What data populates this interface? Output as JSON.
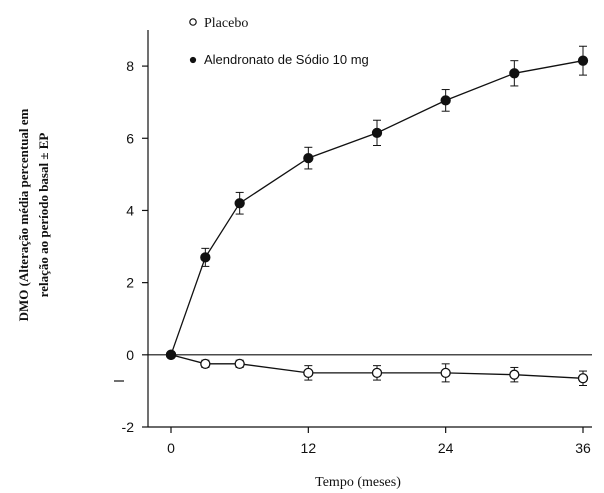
{
  "chart_data": {
    "type": "line",
    "xlabel": "Tempo (meses)",
    "ylabel_lines": [
      "DMO (Alteração média percentual em",
      "relação ao período basal ± EP"
    ],
    "xlim": [
      0,
      36
    ],
    "ylim": [
      -2,
      9
    ],
    "x_ticks": [
      0,
      12,
      24,
      36
    ],
    "y_ticks": [
      -2,
      0,
      2,
      4,
      6,
      8
    ],
    "grid": false,
    "legend_position": "top-left",
    "series": [
      {
        "name": "Placebo",
        "marker": "open-circle",
        "x": [
          0,
          3,
          6,
          12,
          18,
          24,
          30,
          36
        ],
        "y": [
          0.0,
          -0.25,
          -0.25,
          -0.5,
          -0.5,
          -0.5,
          -0.55,
          -0.65
        ],
        "err": [
          0.0,
          0.1,
          0.1,
          0.2,
          0.2,
          0.25,
          0.2,
          0.2
        ]
      },
      {
        "name": "Alendronato de Sódio 10 mg",
        "marker": "filled-circle",
        "x": [
          0,
          3,
          6,
          12,
          18,
          24,
          30,
          36
        ],
        "y": [
          0.0,
          2.7,
          4.2,
          5.45,
          6.15,
          7.05,
          7.8,
          8.15
        ],
        "err": [
          0.0,
          0.25,
          0.3,
          0.3,
          0.35,
          0.3,
          0.35,
          0.4
        ]
      }
    ]
  }
}
